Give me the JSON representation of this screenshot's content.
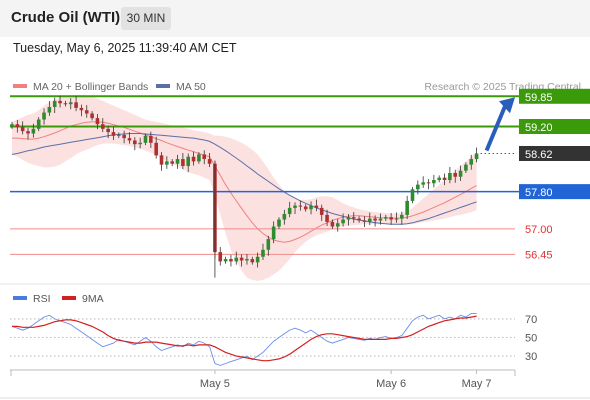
{
  "header": {
    "title": "Crude Oil (WTI)",
    "timeframe": "30 MIN",
    "timestamp": "Tuesday, May 6, 2025 11:39:40 AM CET"
  },
  "chart_data": [
    {
      "type": "candlestick",
      "legend": [
        {
          "name": "MA 20 + Bollinger Bands",
          "color": "#f08080"
        },
        {
          "name": "MA 50",
          "color": "#5a6fa8"
        }
      ],
      "watermark": "Research © 2025 Trading Central",
      "y_range": [
        55.9,
        60.2
      ],
      "levels": [
        {
          "label": "59.85",
          "value": 59.85,
          "kind": "resistance",
          "color": "#3a9a0a"
        },
        {
          "label": "59.20",
          "value": 59.2,
          "kind": "resistance",
          "color": "#3a9a0a"
        },
        {
          "label": "58.62",
          "value": 58.62,
          "kind": "last-price",
          "color": "#333333"
        },
        {
          "label": "57.80",
          "value": 57.8,
          "kind": "pivot",
          "color": "#2164d6"
        },
        {
          "label": "57.00",
          "value": 57.0,
          "kind": "support",
          "color": "#dd3333"
        },
        {
          "label": "56.45",
          "value": 56.45,
          "kind": "support",
          "color": "#dd3333"
        }
      ],
      "x_ticks": [
        "May 5",
        "May 6",
        "May 7"
      ],
      "forecast_arrow": {
        "from": 58.62,
        "to": 59.85,
        "direction": "up"
      },
      "closes": [
        59.25,
        59.18,
        59.1,
        59.05,
        59.15,
        59.35,
        59.5,
        59.62,
        59.75,
        59.7,
        59.68,
        59.72,
        59.6,
        59.55,
        59.48,
        59.38,
        59.25,
        59.15,
        59.08,
        59.0,
        59.02,
        58.95,
        58.9,
        58.82,
        58.85,
        59.0,
        58.85,
        58.58,
        58.38,
        58.45,
        58.4,
        58.5,
        58.35,
        58.55,
        58.45,
        58.6,
        58.5,
        58.4,
        56.5,
        56.3,
        56.35,
        56.3,
        56.38,
        56.32,
        56.35,
        56.28,
        56.4,
        56.55,
        56.78,
        57.05,
        57.2,
        57.32,
        57.45,
        57.5,
        57.48,
        57.42,
        57.5,
        57.45,
        57.3,
        57.15,
        57.05,
        57.12,
        57.2,
        57.25,
        57.22,
        57.18,
        57.15,
        57.22,
        57.18,
        57.22,
        57.25,
        57.2,
        57.22,
        57.3,
        57.6,
        57.85,
        57.95,
        58.0,
        57.98,
        58.05,
        58.1,
        58.05,
        58.2,
        58.12,
        58.25,
        58.38,
        58.5,
        58.62
      ],
      "ma20": [
        58.95,
        58.95,
        58.94,
        58.93,
        58.93,
        58.95,
        58.98,
        59.02,
        59.06,
        59.11,
        59.16,
        59.21,
        59.24,
        59.27,
        59.29,
        59.3,
        59.3,
        59.29,
        59.27,
        59.24,
        59.21,
        59.18,
        59.14,
        59.1,
        59.06,
        59.02,
        58.98,
        58.94,
        58.9,
        58.85,
        58.81,
        58.77,
        58.73,
        58.69,
        58.66,
        58.62,
        58.58,
        58.55,
        58.35,
        58.15,
        57.95,
        57.77,
        57.6,
        57.44,
        57.28,
        57.13,
        57.0,
        56.9,
        56.82,
        56.76,
        56.73,
        56.71,
        56.73,
        56.77,
        56.82,
        56.88,
        56.95,
        57.02,
        57.08,
        57.13,
        57.18,
        57.22,
        57.25,
        57.27,
        57.28,
        57.28,
        57.27,
        57.26,
        57.25,
        57.24,
        57.24,
        57.23,
        57.23,
        57.23,
        57.25,
        57.28,
        57.32,
        57.36,
        57.41,
        57.46,
        57.51,
        57.56,
        57.62,
        57.68,
        57.74,
        57.8,
        57.87,
        57.93
      ],
      "bb_upper": [
        59.3,
        59.35,
        59.4,
        59.45,
        59.48,
        59.55,
        59.65,
        59.72,
        59.78,
        59.82,
        59.85,
        59.87,
        59.88,
        59.88,
        59.87,
        59.85,
        59.8,
        59.75,
        59.7,
        59.65,
        59.6,
        59.55,
        59.5,
        59.45,
        59.4,
        59.35,
        59.32,
        59.3,
        59.28,
        59.25,
        59.22,
        59.2,
        59.18,
        59.15,
        59.12,
        59.1,
        59.08,
        59.05,
        59.0,
        59.0,
        58.98,
        58.95,
        58.9,
        58.85,
        58.78,
        58.7,
        58.6,
        58.45,
        58.28,
        58.1,
        57.95,
        57.82,
        57.72,
        57.65,
        57.62,
        57.62,
        57.64,
        57.68,
        57.7,
        57.7,
        57.68,
        57.62,
        57.55,
        57.5,
        57.46,
        57.42,
        57.4,
        57.38,
        57.36,
        57.35,
        57.34,
        57.33,
        57.33,
        57.34,
        57.38,
        57.45,
        57.55,
        57.65,
        57.75,
        57.85,
        57.95,
        58.05,
        58.15,
        58.25,
        58.35,
        58.45,
        58.55,
        58.65
      ],
      "bb_lower": [
        58.6,
        58.55,
        58.48,
        58.42,
        58.38,
        58.35,
        58.32,
        58.32,
        58.34,
        58.38,
        58.45,
        58.52,
        58.6,
        58.66,
        58.7,
        58.75,
        58.8,
        58.83,
        58.84,
        58.83,
        58.82,
        58.8,
        58.78,
        58.75,
        58.72,
        58.68,
        58.64,
        58.58,
        58.52,
        58.46,
        58.4,
        58.34,
        58.28,
        58.22,
        58.18,
        58.15,
        58.1,
        58.05,
        57.7,
        57.3,
        56.9,
        56.55,
        56.3,
        56.1,
        55.95,
        55.9,
        55.88,
        55.9,
        55.95,
        56.02,
        56.1,
        56.22,
        56.35,
        56.5,
        56.62,
        56.72,
        56.8,
        56.86,
        56.9,
        56.94,
        56.98,
        57.02,
        57.05,
        57.07,
        57.08,
        57.09,
        57.1,
        57.1,
        57.1,
        57.1,
        57.1,
        57.1,
        57.1,
        57.1,
        57.1,
        57.1,
        57.12,
        57.14,
        57.16,
        57.18,
        57.2,
        57.22,
        57.25,
        57.28,
        57.3,
        57.33,
        57.36,
        57.4
      ],
      "ma50": [
        58.6,
        58.62,
        58.65,
        58.68,
        58.7,
        58.73,
        58.76,
        58.78,
        58.8,
        58.82,
        58.84,
        58.86,
        58.88,
        58.9,
        58.92,
        58.94,
        58.96,
        58.98,
        59.0,
        59.02,
        59.03,
        59.04,
        59.05,
        59.05,
        59.05,
        59.04,
        59.03,
        59.02,
        59.01,
        59.0,
        58.99,
        58.98,
        58.97,
        58.96,
        58.95,
        58.93,
        58.91,
        58.88,
        58.82,
        58.75,
        58.68,
        58.6,
        58.52,
        58.44,
        58.35,
        58.27,
        58.18,
        58.1,
        58.02,
        57.94,
        57.86,
        57.79,
        57.72,
        57.66,
        57.6,
        57.55,
        57.5,
        57.45,
        57.41,
        57.37,
        57.33,
        57.3,
        57.27,
        57.24,
        57.21,
        57.19,
        57.17,
        57.15,
        57.13,
        57.12,
        57.11,
        57.1,
        57.1,
        57.1,
        57.11,
        57.13,
        57.16,
        57.19,
        57.22,
        57.26,
        57.3,
        57.34,
        57.38,
        57.42,
        57.46,
        57.5,
        57.54,
        57.58
      ]
    },
    {
      "type": "line",
      "legend": [
        {
          "name": "RSI",
          "color": "#4a7ce0"
        },
        {
          "name": "9MA",
          "color": "#d42020"
        }
      ],
      "y_ticks": [
        70,
        50,
        30
      ],
      "y_range": [
        15,
        85
      ],
      "rsi": [
        62,
        60,
        58,
        60,
        64,
        68,
        72,
        74,
        70,
        68,
        66,
        64,
        60,
        56,
        52,
        48,
        44,
        40,
        42,
        44,
        48,
        46,
        44,
        42,
        46,
        50,
        46,
        40,
        36,
        38,
        40,
        42,
        40,
        44,
        42,
        46,
        44,
        40,
        22,
        20,
        22,
        24,
        26,
        28,
        30,
        26,
        30,
        34,
        40,
        46,
        50,
        54,
        58,
        60,
        58,
        55,
        58,
        54,
        50,
        46,
        44,
        46,
        48,
        50,
        49,
        48,
        47,
        49,
        48,
        50,
        51,
        49,
        50,
        52,
        60,
        68,
        72,
        74,
        70,
        72,
        74,
        70,
        72,
        70,
        74,
        72,
        76,
        76
      ],
      "rsi_ma9": [
        62,
        62,
        61,
        61,
        61,
        62,
        63,
        65,
        67,
        68,
        69,
        69,
        68,
        66,
        64,
        62,
        59,
        56,
        52,
        49,
        47,
        46,
        45,
        44,
        44,
        45,
        45,
        45,
        44,
        43,
        42,
        41,
        41,
        42,
        41,
        42,
        42,
        42,
        40,
        37,
        34,
        32,
        30,
        29,
        28,
        27,
        26,
        25,
        25,
        26,
        27,
        29,
        32,
        36,
        40,
        44,
        48,
        51,
        53,
        54,
        54,
        53,
        52,
        51,
        50,
        49,
        48,
        48,
        48,
        48,
        48,
        49,
        49,
        50,
        51,
        53,
        56,
        59,
        62,
        64,
        66,
        68,
        69,
        70,
        71,
        71,
        72,
        73
      ]
    }
  ]
}
